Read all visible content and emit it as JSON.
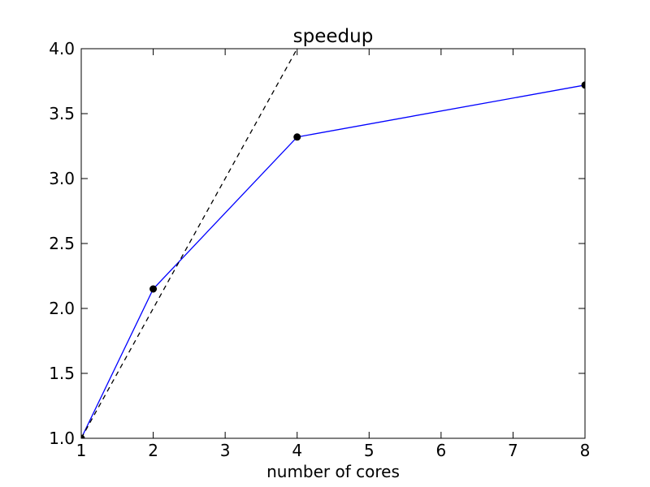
{
  "chart_data": {
    "type": "line",
    "title": "speedup",
    "xlabel": "number of cores",
    "ylabel": "",
    "xlim": [
      1,
      8
    ],
    "ylim": [
      1.0,
      4.0
    ],
    "x_ticks": [
      1,
      2,
      3,
      4,
      5,
      6,
      7,
      8
    ],
    "y_ticks": [
      1.0,
      1.5,
      2.0,
      2.5,
      3.0,
      3.5,
      4.0
    ],
    "x_tick_labels": [
      "1",
      "2",
      "3",
      "4",
      "5",
      "6",
      "7",
      "8"
    ],
    "y_tick_labels": [
      "1.0",
      "1.5",
      "2.0",
      "2.5",
      "3.0",
      "3.5",
      "4.0"
    ],
    "grid": false,
    "series": [
      {
        "style": "solid-with-markers",
        "color": "#0000ff",
        "marker_color": "#000000",
        "x": [
          1,
          2,
          4,
          8
        ],
        "y": [
          1.0,
          2.15,
          3.32,
          3.72
        ]
      },
      {
        "style": "dashed",
        "color": "#000000",
        "x": [
          1,
          4
        ],
        "y": [
          1.0,
          4.0
        ]
      }
    ]
  }
}
